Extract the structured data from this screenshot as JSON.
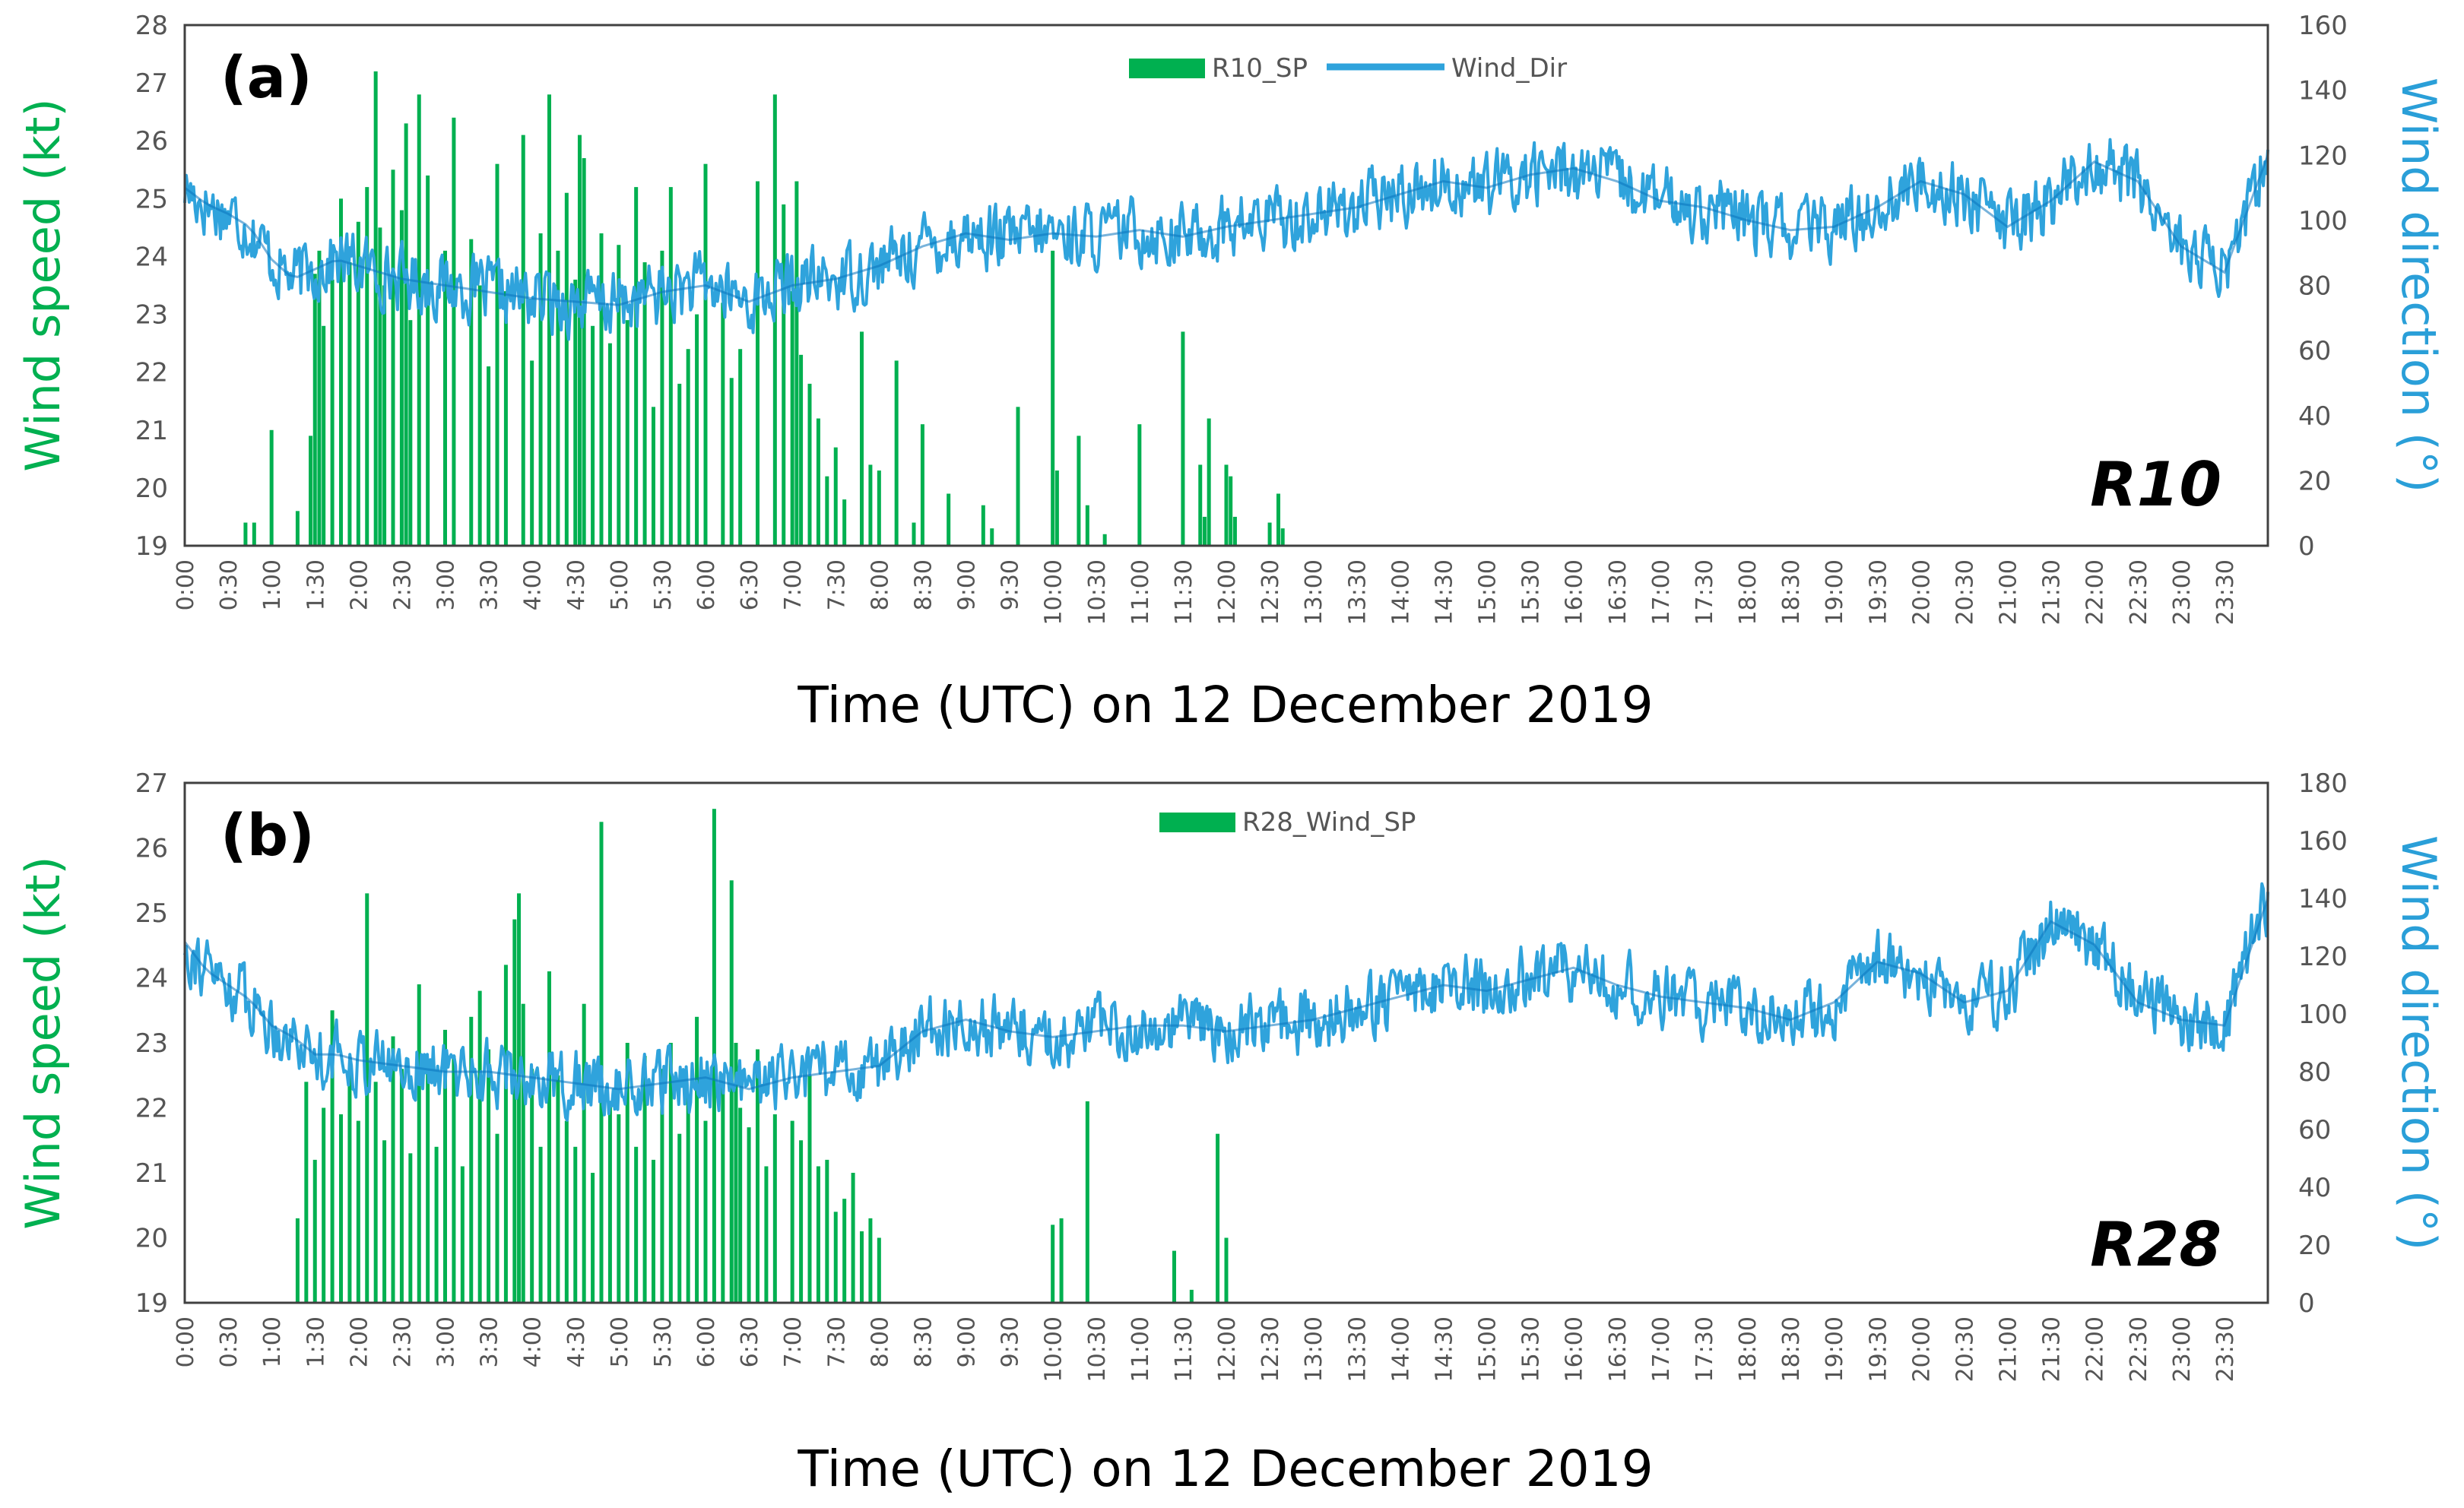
{
  "chart_data": [
    {
      "type": "bar",
      "panel_label": "(a)",
      "station": "R10",
      "title": "",
      "xlabel": "Time (UTC) on 12 December 2019",
      "ylabel": "Wind speed (kt)",
      "y2label": "Wind direction (°)",
      "ylim": [
        19,
        28
      ],
      "yticks": [
        19,
        20,
        21,
        22,
        23,
        24,
        25,
        26,
        27,
        28
      ],
      "y2lim": [
        0,
        160
      ],
      "y2ticks": [
        0,
        20,
        40,
        60,
        80,
        100,
        120,
        140,
        160
      ],
      "legend": [
        "R10_SP",
        "Wind_Dir"
      ],
      "legend_position": "top-center",
      "colors": {
        "speed": "#00b050",
        "direction": "#2fa3dc",
        "direction_dark": "#0a75bd"
      },
      "xticks": [
        "0:00",
        "0:30",
        "1:00",
        "1:30",
        "2:00",
        "2:30",
        "3:00",
        "3:30",
        "4:00",
        "4:30",
        "5:00",
        "5:30",
        "6:00",
        "6:30",
        "7:00",
        "7:30",
        "8:00",
        "8:30",
        "9:00",
        "9:30",
        "10:00",
        "10:30",
        "11:00",
        "11:30",
        "12:00",
        "12:30",
        "13:00",
        "13:30",
        "14:00",
        "14:30",
        "15:00",
        "15:30",
        "16:00",
        "16:30",
        "17:00",
        "17:30",
        "18:00",
        "18:30",
        "19:00",
        "19:30",
        "20:00",
        "20:30",
        "21:00",
        "21:30",
        "22:00",
        "22:30",
        "23:00",
        "23:30"
      ],
      "series": [
        {
          "name": "R10_SP",
          "kind": "bar",
          "axis": "left",
          "x_hours": [
            0.7,
            0.8,
            1.0,
            1.3,
            1.45,
            1.5,
            1.55,
            1.6,
            1.7,
            1.8,
            1.9,
            2.0,
            2.1,
            2.2,
            2.25,
            2.3,
            2.4,
            2.5,
            2.55,
            2.6,
            2.7,
            2.8,
            3.0,
            3.1,
            3.3,
            3.4,
            3.5,
            3.6,
            3.7,
            3.9,
            4.0,
            4.1,
            4.2,
            4.3,
            4.4,
            4.5,
            4.55,
            4.6,
            4.7,
            4.8,
            4.9,
            5.0,
            5.1,
            5.2,
            5.3,
            5.4,
            5.5,
            5.6,
            5.7,
            5.8,
            5.9,
            6.0,
            6.2,
            6.3,
            6.4,
            6.6,
            6.8,
            6.9,
            7.0,
            7.05,
            7.1,
            7.2,
            7.3,
            7.4,
            7.5,
            7.6,
            7.8,
            7.9,
            8.0,
            8.2,
            8.4,
            8.5,
            8.8,
            9.2,
            9.3,
            9.6,
            10.0,
            10.05,
            10.3,
            10.4,
            10.6,
            11.0,
            11.5,
            11.7,
            11.75,
            11.8,
            12.0,
            12.05,
            12.1,
            12.5,
            12.6,
            12.65
          ],
          "values": [
            19.4,
            19.4,
            21.0,
            19.6,
            20.9,
            23.7,
            24.1,
            22.8,
            23.6,
            25.0,
            23.9,
            24.6,
            25.2,
            27.2,
            24.5,
            23.5,
            25.5,
            24.8,
            26.3,
            22.9,
            26.8,
            25.4,
            24.1,
            26.4,
            24.3,
            23.5,
            22.1,
            25.6,
            23.4,
            26.1,
            22.2,
            24.4,
            26.8,
            24.1,
            25.1,
            23.6,
            26.1,
            25.7,
            22.8,
            24.4,
            22.5,
            24.2,
            22.9,
            25.2,
            23.9,
            21.4,
            24.1,
            25.2,
            21.8,
            22.4,
            23.0,
            25.6,
            23.2,
            21.9,
            22.4,
            25.3,
            26.8,
            24.9,
            23.4,
            25.3,
            22.3,
            21.8,
            21.2,
            20.2,
            20.7,
            19.8,
            22.7,
            20.4,
            20.3,
            22.2,
            19.4,
            21.1,
            19.9,
            19.7,
            19.3,
            21.4,
            24.1,
            20.3,
            20.9,
            19.7,
            19.2,
            21.1,
            22.7,
            20.4,
            19.5,
            21.2,
            20.4,
            20.2,
            19.5,
            19.4,
            19.9,
            19.3
          ]
        },
        {
          "name": "Wind_Dir",
          "kind": "line",
          "axis": "right",
          "x_hours": [
            0,
            0.25,
            0.5,
            0.75,
            1.0,
            1.25,
            1.5,
            1.75,
            2.0,
            2.5,
            3.0,
            3.5,
            4.0,
            4.5,
            5.0,
            5.5,
            6.0,
            6.5,
            7.0,
            7.5,
            8.0,
            8.5,
            9.0,
            9.5,
            10.0,
            10.5,
            11.0,
            11.5,
            12.0,
            12.5,
            13.0,
            13.5,
            14.0,
            14.5,
            15.0,
            15.5,
            16.0,
            16.5,
            17.0,
            17.5,
            18.0,
            18.5,
            19.0,
            19.5,
            20.0,
            20.5,
            21.0,
            21.5,
            22.0,
            22.5,
            23.0,
            23.5,
            24.0
          ],
          "values": [
            110,
            105,
            102,
            98,
            88,
            82,
            85,
            88,
            86,
            82,
            80,
            78,
            76,
            75,
            74,
            78,
            80,
            75,
            80,
            82,
            86,
            92,
            96,
            94,
            96,
            95,
            97,
            95,
            98,
            100,
            102,
            104,
            108,
            112,
            110,
            114,
            116,
            112,
            106,
            104,
            100,
            97,
            98,
            104,
            112,
            108,
            98,
            106,
            118,
            112,
            92,
            84,
            120
          ],
          "noise_amplitude": 9
        }
      ]
    },
    {
      "type": "bar",
      "panel_label": "(b)",
      "station": "R28",
      "title": "",
      "xlabel": "Time (UTC) on 12 December 2019",
      "ylabel": "Wind speed (kt)",
      "y2label": "Wind direction (°)",
      "ylim": [
        19,
        27
      ],
      "yticks": [
        19,
        20,
        21,
        22,
        23,
        24,
        25,
        26,
        27
      ],
      "y2lim": [
        0,
        180
      ],
      "y2ticks": [
        0,
        20,
        40,
        60,
        80,
        100,
        120,
        140,
        160,
        180
      ],
      "legend": [
        "R28_Wind_SP"
      ],
      "legend_position": "top-center",
      "colors": {
        "speed": "#00b050",
        "direction": "#2fa3dc",
        "direction_dark": "#0a75bd"
      },
      "xticks": [
        "0:00",
        "0:30",
        "1:00",
        "1:30",
        "2:00",
        "2:30",
        "3:00",
        "3:30",
        "4:00",
        "4:30",
        "5:00",
        "5:30",
        "6:00",
        "6:30",
        "7:00",
        "7:30",
        "8:00",
        "8:30",
        "9:00",
        "9:30",
        "10:00",
        "10:30",
        "11:00",
        "11:30",
        "12:00",
        "12:30",
        "13:00",
        "13:30",
        "14:00",
        "14:30",
        "15:00",
        "15:30",
        "16:00",
        "16:30",
        "17:00",
        "17:30",
        "18:00",
        "18:30",
        "19:00",
        "19:30",
        "20:00",
        "20:30",
        "21:00",
        "21:30",
        "22:00",
        "22:30",
        "23:00",
        "23:30"
      ],
      "series": [
        {
          "name": "R28_Wind_SP",
          "kind": "bar",
          "axis": "left",
          "x_hours": [
            1.3,
            1.4,
            1.5,
            1.6,
            1.7,
            1.8,
            1.9,
            2.0,
            2.1,
            2.2,
            2.3,
            2.4,
            2.5,
            2.6,
            2.7,
            2.8,
            2.9,
            3.0,
            3.1,
            3.2,
            3.3,
            3.4,
            3.5,
            3.6,
            3.7,
            3.8,
            3.85,
            3.9,
            4.0,
            4.1,
            4.2,
            4.3,
            4.4,
            4.5,
            4.6,
            4.7,
            4.8,
            4.9,
            5.0,
            5.1,
            5.2,
            5.3,
            5.4,
            5.5,
            5.6,
            5.7,
            5.8,
            5.9,
            6.0,
            6.1,
            6.2,
            6.3,
            6.35,
            6.4,
            6.5,
            6.6,
            6.7,
            6.8,
            7.0,
            7.1,
            7.2,
            7.3,
            7.4,
            7.5,
            7.6,
            7.7,
            7.8,
            7.9,
            8.0,
            10.0,
            10.1,
            10.4,
            11.4,
            11.6,
            11.9,
            12.0
          ],
          "values": [
            20.3,
            22.4,
            21.2,
            22.0,
            23.5,
            21.9,
            22.6,
            21.8,
            25.3,
            22.4,
            21.5,
            23.1,
            22.6,
            21.3,
            23.9,
            22.7,
            21.4,
            23.2,
            22.8,
            21.1,
            23.4,
            23.8,
            22.9,
            21.6,
            24.2,
            24.9,
            25.3,
            23.6,
            22.6,
            21.4,
            24.1,
            22.5,
            21.8,
            21.4,
            23.6,
            21.0,
            26.4,
            22.1,
            21.9,
            23.0,
            21.4,
            22.8,
            21.2,
            22.6,
            23.0,
            21.6,
            22.2,
            23.4,
            21.8,
            26.6,
            22.4,
            25.5,
            23.0,
            22.0,
            21.7,
            22.9,
            21.1,
            21.9,
            21.8,
            21.5,
            22.5,
            21.1,
            21.2,
            20.4,
            20.6,
            21.0,
            20.1,
            20.3,
            20.0,
            20.2,
            20.3,
            22.1,
            19.8,
            19.2,
            21.6,
            20.0
          ]
        },
        {
          "name": "Wind_Dir",
          "kind": "line",
          "axis": "right",
          "x_hours": [
            0,
            0.25,
            0.5,
            0.75,
            1.0,
            1.25,
            1.5,
            1.75,
            2.0,
            2.5,
            3.0,
            3.5,
            4.0,
            4.5,
            5.0,
            5.5,
            6.0,
            6.5,
            7.0,
            7.5,
            8.0,
            8.5,
            9.0,
            9.5,
            10.0,
            10.5,
            11.0,
            11.5,
            12.0,
            12.5,
            13.0,
            13.5,
            14.0,
            14.5,
            15.0,
            15.5,
            16.0,
            16.5,
            17.0,
            17.5,
            18.0,
            18.5,
            19.0,
            19.5,
            20.0,
            20.5,
            21.0,
            21.5,
            22.0,
            22.5,
            23.0,
            23.5,
            24.0
          ],
          "values": [
            125,
            115,
            110,
            105,
            96,
            92,
            86,
            86,
            84,
            82,
            80,
            80,
            78,
            76,
            74,
            76,
            78,
            74,
            78,
            80,
            82,
            94,
            98,
            94,
            92,
            94,
            96,
            96,
            94,
            96,
            98,
            102,
            106,
            110,
            108,
            112,
            116,
            110,
            106,
            104,
            102,
            98,
            104,
            118,
            114,
            104,
            108,
            132,
            124,
            104,
            98,
            96,
            140
          ],
          "noise_amplitude": 10
        }
      ]
    }
  ]
}
